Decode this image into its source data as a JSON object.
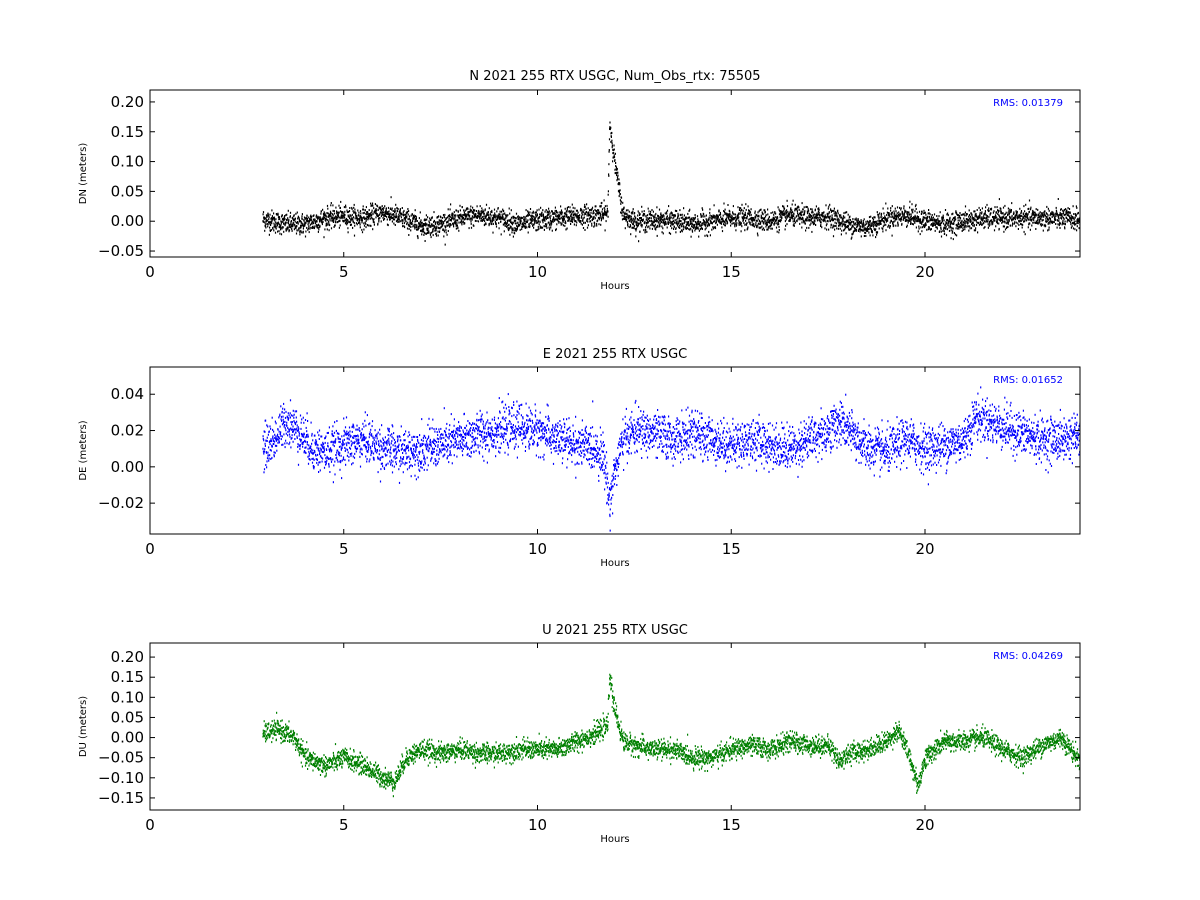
{
  "chart_data": [
    {
      "type": "scatter",
      "title": "N 2021 255 RTX  USGC, Num_Obs_rtx: 75505",
      "xlabel": "Hours",
      "ylabel": "DN (meters)",
      "xlim": [
        0,
        24
      ],
      "ylim": [
        -0.06,
        0.22
      ],
      "xticks": [
        0,
        5,
        10,
        15,
        20
      ],
      "yticks": [
        -0.05,
        0.0,
        0.05,
        0.1,
        0.15,
        0.2
      ],
      "ytick_labels": [
        "−0.05",
        "0.00",
        "0.05",
        "0.10",
        "0.15",
        "0.20"
      ],
      "color": "#000000",
      "annotation": "RMS:  0.01379",
      "annotation_color": "#0000ff",
      "grid": false,
      "noise": 0.009,
      "series": [
        {
          "x": [
            2.9,
            3.5,
            4.0,
            4.5,
            5.0,
            5.5,
            6.0,
            6.5,
            7.0,
            7.5,
            8.0,
            8.5,
            9.0,
            9.5,
            10.0,
            10.5,
            11.0,
            11.5,
            11.8,
            11.85,
            12.0,
            12.2,
            12.5,
            13.0,
            13.5,
            14.0,
            14.5,
            15.0,
            15.5,
            16.0,
            16.5,
            17.0,
            17.5,
            18.0,
            18.5,
            19.0,
            19.5,
            20.0,
            20.5,
            21.0,
            21.5,
            22.0,
            22.5,
            23.0,
            23.5,
            24.0
          ],
          "y": [
            0.003,
            -0.005,
            -0.005,
            0.005,
            0.008,
            0.005,
            0.015,
            0.005,
            -0.008,
            -0.005,
            0.005,
            0.01,
            0.005,
            -0.005,
            0.002,
            0.005,
            0.008,
            0.01,
            0.012,
            0.165,
            0.09,
            0.01,
            0.0,
            0.002,
            0.0,
            -0.005,
            0.0,
            0.005,
            0.005,
            0.0,
            0.01,
            0.005,
            0.008,
            -0.005,
            -0.01,
            0.005,
            0.01,
            0.0,
            -0.005,
            0.0,
            0.005,
            0.005,
            0.005,
            0.005,
            0.005,
            0.003
          ]
        }
      ]
    },
    {
      "type": "scatter",
      "title": "E 2021 255 RTX  USGC",
      "xlabel": "Hours",
      "ylabel": "DE (meters)",
      "xlim": [
        0,
        24
      ],
      "ylim": [
        -0.037,
        0.055
      ],
      "xticks": [
        0,
        5,
        10,
        15,
        20
      ],
      "yticks": [
        -0.02,
        0.0,
        0.02,
        0.04
      ],
      "ytick_labels": [
        "−0.02",
        "0.00",
        "0.02",
        "0.04"
      ],
      "color": "#0000ff",
      "annotation": "RMS:  0.01652",
      "annotation_color": "#0000ff",
      "grid": false,
      "noise": 0.006,
      "series": [
        {
          "x": [
            2.9,
            3.2,
            3.5,
            3.8,
            4.2,
            4.5,
            5.0,
            5.5,
            6.0,
            6.5,
            7.0,
            7.5,
            8.0,
            8.5,
            9.0,
            9.5,
            10.0,
            10.5,
            11.0,
            11.5,
            11.7,
            11.85,
            11.95,
            12.2,
            12.5,
            13.0,
            13.5,
            14.0,
            14.5,
            15.0,
            15.5,
            16.0,
            16.5,
            17.0,
            17.5,
            17.8,
            18.0,
            18.5,
            19.0,
            19.5,
            20.0,
            20.5,
            21.0,
            21.3,
            21.6,
            22.0,
            22.5,
            23.0,
            23.5,
            24.0
          ],
          "y": [
            0.01,
            0.015,
            0.025,
            0.02,
            0.01,
            0.008,
            0.012,
            0.015,
            0.01,
            0.008,
            0.01,
            0.012,
            0.015,
            0.018,
            0.02,
            0.022,
            0.02,
            0.015,
            0.012,
            0.01,
            0.005,
            -0.02,
            -0.005,
            0.015,
            0.02,
            0.018,
            0.015,
            0.018,
            0.015,
            0.012,
            0.015,
            0.012,
            0.01,
            0.015,
            0.02,
            0.025,
            0.02,
            0.01,
            0.008,
            0.015,
            0.01,
            0.012,
            0.015,
            0.028,
            0.025,
            0.022,
            0.018,
            0.015,
            0.015,
            0.018
          ]
        }
      ]
    },
    {
      "type": "scatter",
      "title": "U 2021 255 RTX  USGC",
      "xlabel": "Hours",
      "ylabel": "DU (meters)",
      "xlim": [
        0,
        24
      ],
      "ylim": [
        -0.18,
        0.235
      ],
      "xticks": [
        0,
        5,
        10,
        15,
        20
      ],
      "yticks": [
        -0.15,
        -0.1,
        -0.05,
        0.0,
        0.05,
        0.1,
        0.15,
        0.2
      ],
      "ytick_labels": [
        "−0.15",
        "−0.10",
        "−0.05",
        "0.00",
        "0.05",
        "0.10",
        "0.15",
        "0.20"
      ],
      "color": "#008000",
      "annotation": "RMS:  0.04269",
      "annotation_color": "#0000ff",
      "grid": false,
      "noise": 0.012,
      "series": [
        {
          "x": [
            2.9,
            3.3,
            3.7,
            4.0,
            4.5,
            5.0,
            5.5,
            6.0,
            6.3,
            6.6,
            7.0,
            7.5,
            8.0,
            8.5,
            9.0,
            9.5,
            10.0,
            10.5,
            11.0,
            11.5,
            11.8,
            11.85,
            11.95,
            12.2,
            12.5,
            13.0,
            13.5,
            14.0,
            14.5,
            15.0,
            15.5,
            16.0,
            16.5,
            17.0,
            17.5,
            17.8,
            18.0,
            18.5,
            19.0,
            19.3,
            19.6,
            19.8,
            20.0,
            20.5,
            21.0,
            21.5,
            22.0,
            22.5,
            23.0,
            23.5,
            24.0
          ],
          "y": [
            0.01,
            0.02,
            0.0,
            -0.05,
            -0.07,
            -0.05,
            -0.07,
            -0.1,
            -0.11,
            -0.05,
            -0.03,
            -0.04,
            -0.03,
            -0.04,
            -0.04,
            -0.03,
            -0.03,
            -0.03,
            -0.01,
            0.01,
            0.03,
            0.16,
            0.08,
            -0.01,
            -0.02,
            -0.03,
            -0.03,
            -0.05,
            -0.05,
            -0.03,
            -0.02,
            -0.03,
            -0.01,
            -0.02,
            -0.02,
            -0.06,
            -0.04,
            -0.03,
            -0.01,
            0.02,
            -0.05,
            -0.12,
            -0.05,
            -0.01,
            -0.01,
            0.0,
            -0.03,
            -0.05,
            -0.02,
            0.0,
            -0.06
          ]
        }
      ]
    }
  ]
}
